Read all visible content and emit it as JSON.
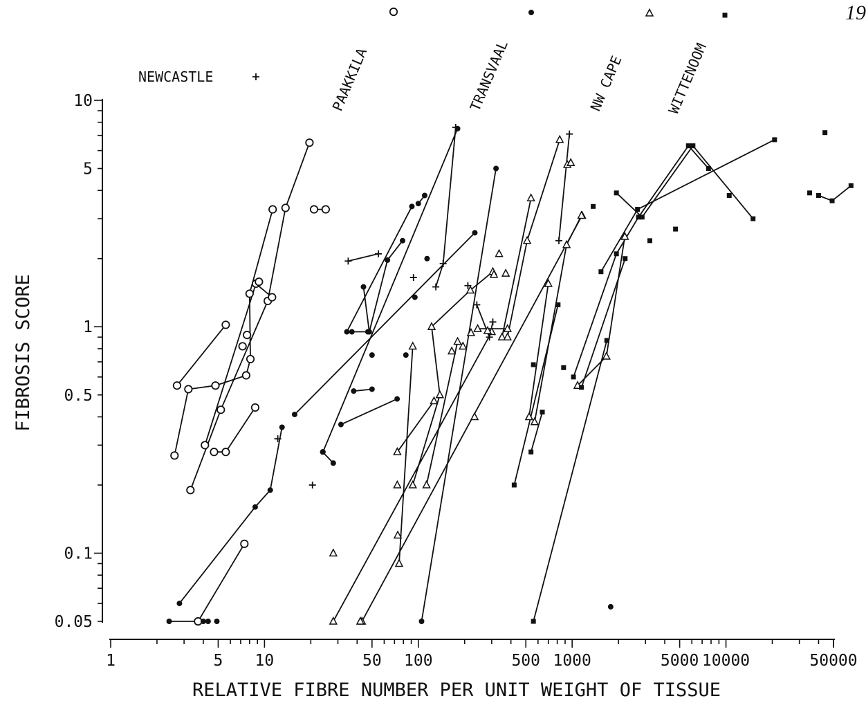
{
  "page_number": "19",
  "colors": {
    "ink": "#111111",
    "background": "#ffffff"
  },
  "chart_data": {
    "type": "scatter",
    "title": "",
    "xlabel": "RELATIVE FIBRE NUMBER PER UNIT WEIGHT OF TISSUE",
    "ylabel": "FIBROSIS SCORE",
    "xscale": "log",
    "yscale": "log",
    "xlim": [
      1,
      50000
    ],
    "ylim": [
      0.05,
      10
    ],
    "x_tick_labels": [
      "1",
      "5",
      "10",
      "50",
      "100",
      "500",
      "1000",
      "5000",
      "10000",
      "50000"
    ],
    "y_tick_labels": [
      "10",
      "5",
      "1",
      "0.5",
      "0.1",
      "0.05"
    ],
    "grid": false,
    "legend": [
      {
        "name": "NEWCASTLE",
        "marker": "plus"
      },
      {
        "name": "PAAKKILA",
        "marker": "open-circle"
      },
      {
        "name": "TRANSVAAL",
        "marker": "filled-circle"
      },
      {
        "name": "NW CAPE",
        "marker": "open-triangle"
      },
      {
        "name": "WITTENOOM",
        "marker": "filled-square"
      }
    ],
    "series": [
      {
        "name": "PAAKKILA",
        "marker": "open-circle",
        "connected": [
          [
            [
              2.7,
              0.55
            ],
            [
              5.6,
              1.02
            ]
          ],
          [
            [
              2.6,
              0.27
            ],
            [
              3.2,
              0.53
            ],
            [
              4.8,
              0.55
            ],
            [
              7.6,
              0.61
            ],
            [
              8.1,
              0.72
            ],
            [
              8.0,
              1.4
            ],
            [
              11.3,
              3.3
            ]
          ],
          [
            [
              3.3,
              0.19
            ],
            [
              5.2,
              0.43
            ],
            [
              10.5,
              1.3
            ],
            [
              13.7,
              3.35
            ],
            [
              19.6,
              6.5
            ]
          ],
          [
            [
              4.1,
              0.3
            ],
            [
              8.8,
              1.55
            ],
            [
              11.2,
              1.35
            ]
          ],
          [
            [
              4.7,
              0.28
            ],
            [
              5.6,
              0.28
            ],
            [
              8.7,
              0.44
            ]
          ],
          [
            [
              3.7,
              0.05
            ],
            [
              7.4,
              0.11
            ]
          ],
          [
            [
              21.0,
              3.3
            ],
            [
              25.0,
              3.3
            ]
          ]
        ],
        "isolated": [
          [
            7.2,
            0.82
          ],
          [
            7.7,
            0.92
          ],
          [
            9.2,
            1.58
          ]
        ]
      },
      {
        "name": "TRANSVAAL",
        "marker": "filled-circle",
        "connected": [
          [
            [
              2.4,
              0.05
            ],
            [
              4.3,
              0.05
            ]
          ],
          [
            [
              2.8,
              0.06
            ],
            [
              8.7,
              0.16
            ],
            [
              10.9,
              0.19
            ],
            [
              13.0,
              0.36
            ]
          ],
          [
            [
              15.7,
              0.41
            ],
            [
              233,
              2.6
            ]
          ],
          [
            [
              23.9,
              0.28
            ],
            [
              28.0,
              0.25
            ]
          ],
          [
            [
              31.4,
              0.37
            ],
            [
              72.8,
              0.48
            ]
          ],
          [
            [
              34.3,
              0.95
            ],
            [
              90.8,
              3.4
            ]
          ],
          [
            [
              38.0,
              0.52
            ],
            [
              50.0,
              0.53
            ]
          ],
          [
            [
              37.0,
              0.95
            ],
            [
              47.0,
              0.95
            ]
          ],
          [
            [
              44.0,
              1.5
            ],
            [
              48.0,
              0.95
            ],
            [
              63.0,
              1.97
            ],
            [
              79.0,
              2.4
            ]
          ],
          [
            [
              110,
              3.8
            ],
            [
              100,
              3.5
            ]
          ],
          [
            [
              24.0,
              0.28
            ],
            [
              180,
              7.5
            ]
          ],
          [
            [
              105,
              0.05
            ],
            [
              320,
              5.0
            ]
          ]
        ],
        "isolated": [
          [
            4.0,
            0.05
          ],
          [
            4.9,
            0.05
          ],
          [
            50,
            0.75
          ],
          [
            83,
            0.75
          ],
          [
            95,
            1.35
          ],
          [
            114,
            2.0
          ],
          [
            1780,
            0.058
          ]
        ]
      },
      {
        "name": "NW CAPE",
        "marker": "open-triangle",
        "connected": [
          [
            [
              28.0,
              0.05
            ],
            [
              300,
              0.95
            ]
          ],
          [
            [
              43.0,
              0.05
            ],
            [
              1160,
              3.1
            ]
          ],
          [
            [
              75.0,
              0.09
            ],
            [
              92.0,
              0.82
            ]
          ],
          [
            [
              73.0,
              0.28
            ],
            [
              126.5,
              0.47
            ]
          ],
          [
            [
              92.0,
              0.2
            ],
            [
              138,
              0.5
            ],
            [
              122,
              1.0
            ],
            [
              218,
              1.45
            ],
            [
              305,
              1.75
            ]
          ],
          [
            [
              113,
              0.2
            ],
            [
              180,
              0.86
            ]
          ],
          [
            [
              243,
              0.98
            ],
            [
              380,
              0.98
            ]
          ],
          [
            [
              350,
              0.9
            ],
            [
              540,
              3.7
            ]
          ],
          [
            [
              380,
              0.9
            ],
            [
              510,
              2.4
            ],
            [
              830,
              6.7
            ]
          ],
          [
            [
              525,
              0.4
            ],
            [
              700,
              1.55
            ]
          ],
          [
            [
              570,
              0.38
            ],
            [
              920,
              2.3
            ],
            [
              1150,
              3.1
            ]
          ],
          [
            [
              1085,
              0.55
            ],
            [
              1670,
              0.74
            ],
            [
              2200,
              2.5
            ]
          ]
        ],
        "isolated": [
          [
            42.0,
            0.05
          ],
          [
            28.0,
            0.1
          ],
          [
            73.0,
            0.2
          ],
          [
            73.5,
            0.12
          ],
          [
            165,
            0.78
          ],
          [
            195,
            0.82
          ],
          [
            220,
            0.94
          ],
          [
            282,
            0.96
          ],
          [
            310,
            1.7
          ],
          [
            370,
            1.72
          ],
          [
            335,
            2.1
          ],
          [
            232,
            0.4
          ],
          [
            930,
            5.2
          ],
          [
            980,
            5.3
          ]
        ]
      },
      {
        "name": "WITTENOOM",
        "marker": "filled-square",
        "connected": [
          [
            [
              560,
              0.05
            ],
            [
              1680,
              0.87
            ]
          ],
          [
            [
              420,
              0.2
            ],
            [
              810,
              1.25
            ]
          ],
          [
            [
              540,
              0.28
            ],
            [
              640,
              0.42
            ]
          ],
          [
            [
              1020,
              0.6
            ],
            [
              1940,
              2.1
            ],
            [
              2700,
              3.05
            ],
            [
              5700,
              6.3
            ],
            [
              7700,
              5.0
            ]
          ],
          [
            [
              1940,
              3.9
            ],
            [
              2850,
              3.05
            ],
            [
              6100,
              6.3
            ],
            [
              15000,
              3.0
            ]
          ],
          [
            [
              1150,
              0.54
            ],
            [
              2210,
              2.0
            ]
          ],
          [
            [
              1540,
              1.75
            ],
            [
              2660,
              3.3
            ],
            [
              20700,
              6.7
            ]
          ],
          [
            [
              40000,
              3.8
            ],
            [
              49000,
              3.6
            ],
            [
              65000,
              4.2
            ]
          ]
        ],
        "isolated": [
          [
            35000,
            3.9
          ],
          [
            44000,
            7.2
          ],
          [
            10500,
            3.8
          ],
          [
            4700,
            2.7
          ],
          [
            3200,
            2.4
          ],
          [
            1370,
            3.4
          ],
          [
            880,
            0.66
          ],
          [
            560,
            0.68
          ]
        ]
      },
      {
        "name": "NEWCASTLE",
        "marker": "plus",
        "connected": [
          [
            [
              35,
              1.95
            ],
            [
              55,
              2.1
            ]
          ],
          [
            [
              130,
              1.5
            ],
            [
              145,
              1.9
            ],
            [
              175,
              7.6
            ]
          ],
          [
            [
              240,
              1.25
            ],
            [
              290,
              0.9
            ],
            [
              305,
              1.05
            ]
          ],
          [
            [
              960,
              7.1
            ],
            [
              820,
              2.4
            ]
          ]
        ],
        "isolated": [
          [
            12.2,
            0.32
          ],
          [
            20.5,
            0.2
          ],
          [
            93,
            1.65
          ],
          [
            210,
            1.52
          ]
        ]
      }
    ]
  }
}
